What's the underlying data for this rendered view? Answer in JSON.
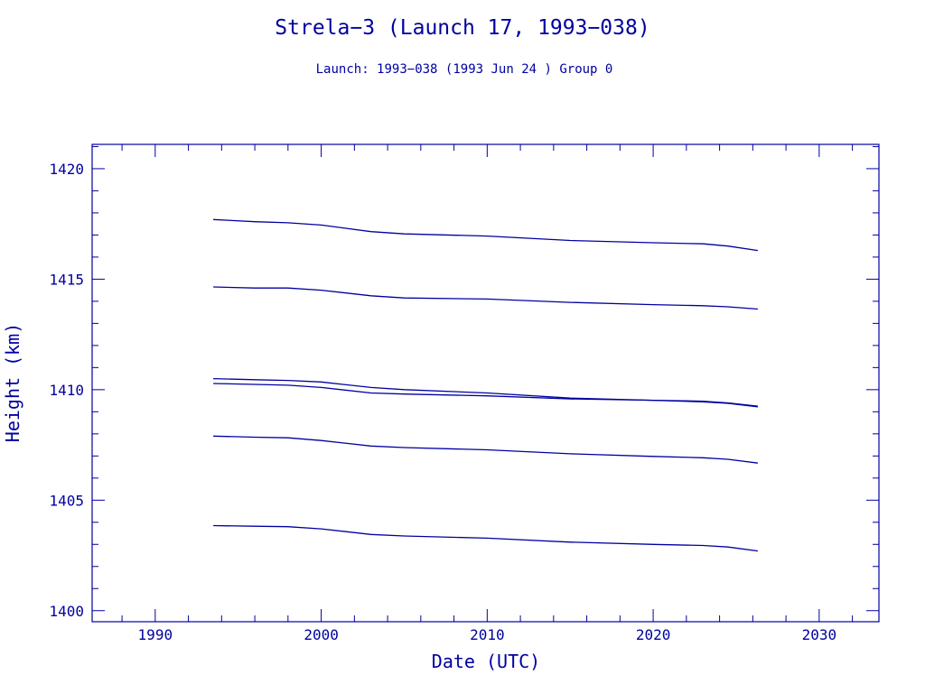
{
  "colors": {
    "ink": "#0000a0",
    "background": "#ffffff"
  },
  "chart_data": {
    "type": "line",
    "title": "Strela−3 (Launch 17, 1993−038)",
    "subtitle": "Launch: 1993−038  (1993 Jun 24 )  Group 0",
    "xlabel": "Date (UTC)",
    "ylabel": "Height (km)",
    "xlim": [
      1986.2,
      2033.6
    ],
    "ylim": [
      1399.5,
      1421.1
    ],
    "xticks": [
      1990,
      2000,
      2010,
      2020,
      2030
    ],
    "yticks": [
      1400,
      1405,
      1410,
      1415,
      1420
    ],
    "x_minor_step": 2,
    "y_minor_step": 1,
    "grid": false,
    "legend": "none",
    "series": [
      {
        "x": [
          1993.5,
          1996.0,
          1998.0,
          2000.0,
          2003.0,
          2005.0,
          2010.0,
          2015.0,
          2020.0,
          2023.0,
          2024.5,
          2026.3
        ],
        "y": [
          1417.7,
          1417.6,
          1417.55,
          1417.45,
          1417.15,
          1417.05,
          1416.95,
          1416.75,
          1416.65,
          1416.6,
          1416.5,
          1416.3
        ]
      },
      {
        "x": [
          1993.5,
          1996.0,
          1998.0,
          2000.0,
          2003.0,
          2005.0,
          2010.0,
          2015.0,
          2020.0,
          2023.0,
          2024.5,
          2026.3
        ],
        "y": [
          1414.65,
          1414.6,
          1414.6,
          1414.5,
          1414.25,
          1414.15,
          1414.1,
          1413.95,
          1413.85,
          1413.8,
          1413.75,
          1413.65
        ]
      },
      {
        "x": [
          1993.5,
          1996.0,
          1998.0,
          2000.0,
          2003.0,
          2005.0,
          2010.0,
          2015.0,
          2020.0,
          2023.0,
          2024.5,
          2026.3
        ],
        "y": [
          1410.5,
          1410.45,
          1410.42,
          1410.35,
          1410.1,
          1410.0,
          1409.85,
          1409.62,
          1409.52,
          1409.48,
          1409.4,
          1409.25
        ]
      },
      {
        "x": [
          1993.5,
          1996.0,
          1998.0,
          2000.0,
          2003.0,
          2005.0,
          2010.0,
          2015.0,
          2020.0,
          2023.0,
          2024.5,
          2026.3
        ],
        "y": [
          1410.28,
          1410.24,
          1410.2,
          1410.1,
          1409.85,
          1409.8,
          1409.72,
          1409.58,
          1409.52,
          1409.45,
          1409.38,
          1409.22
        ]
      },
      {
        "x": [
          1993.5,
          1996.0,
          1998.0,
          2000.0,
          2003.0,
          2005.0,
          2010.0,
          2015.0,
          2020.0,
          2023.0,
          2024.5,
          2026.3
        ],
        "y": [
          1407.9,
          1407.85,
          1407.82,
          1407.7,
          1407.45,
          1407.38,
          1407.28,
          1407.1,
          1406.98,
          1406.92,
          1406.85,
          1406.68
        ]
      },
      {
        "x": [
          1993.5,
          1996.0,
          1998.0,
          2000.0,
          2003.0,
          2005.0,
          2010.0,
          2015.0,
          2020.0,
          2023.0,
          2024.5,
          2026.3
        ],
        "y": [
          1403.85,
          1403.82,
          1403.8,
          1403.7,
          1403.45,
          1403.38,
          1403.28,
          1403.1,
          1403.0,
          1402.95,
          1402.88,
          1402.7
        ]
      }
    ]
  }
}
